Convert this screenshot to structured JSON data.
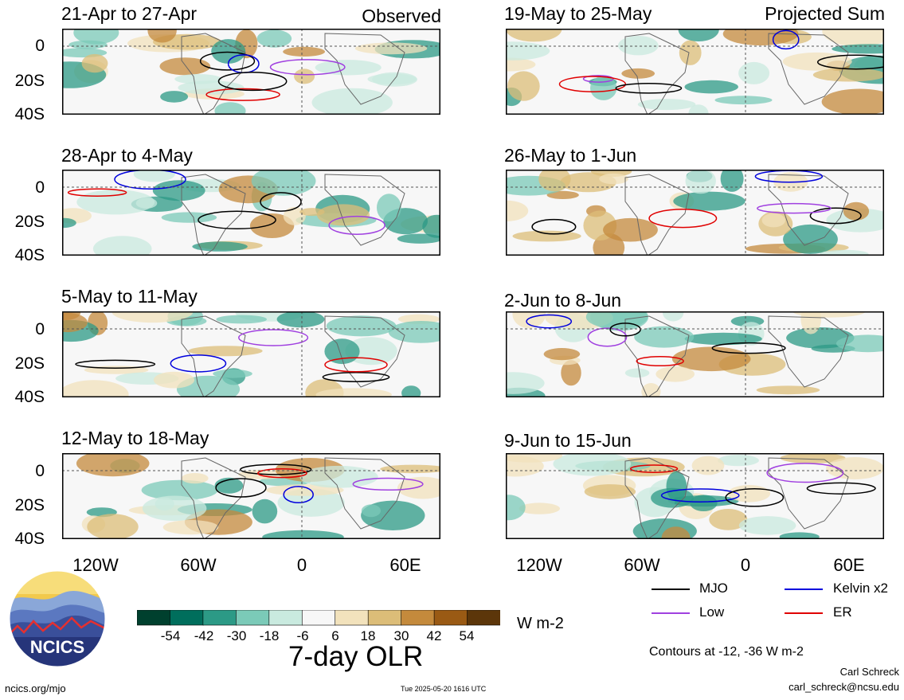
{
  "panels": [
    {
      "title": "21-Apr to 27-Apr",
      "tag": "Observed"
    },
    {
      "title": "28-Apr to 4-May",
      "tag": ""
    },
    {
      "title": "5-May to 11-May",
      "tag": ""
    },
    {
      "title": "12-May to 18-May",
      "tag": ""
    },
    {
      "title": "19-May to 25-May",
      "tag": "Projected Sum"
    },
    {
      "title": "26-May to 1-Jun",
      "tag": ""
    },
    {
      "title": "2-Jun to 8-Jun",
      "tag": ""
    },
    {
      "title": "9-Jun to 15-Jun",
      "tag": ""
    }
  ],
  "lat_labels": [
    "0",
    "20S",
    "40S"
  ],
  "lon_labels": [
    "120W",
    "60W",
    "0",
    "60E"
  ],
  "legend": [
    {
      "label": "MJO",
      "color": "#000000"
    },
    {
      "label": "Kelvin x2",
      "color": "#0000dd"
    },
    {
      "label": "Low",
      "color": "#a040e0"
    },
    {
      "label": "ER",
      "color": "#e00000"
    }
  ],
  "colorbar": {
    "ticks": [
      "-54",
      "-42",
      "-30",
      "-18",
      "-6",
      "6",
      "18",
      "30",
      "42",
      "54"
    ],
    "colors": [
      "#00402e",
      "#006e5c",
      "#2c9a86",
      "#7bcab8",
      "#c9eadf",
      "#f7f7f7",
      "#f2e2bc",
      "#dcbd78",
      "#c48a3c",
      "#9a5a14",
      "#5c360a"
    ],
    "units": "W m-2",
    "title": "7-day OLR"
  },
  "contours_note": "Contours at -12, -36 W m-2",
  "credit_name": "Carl Schreck",
  "credit_email": "carl_schreck@ncsu.edu",
  "site": "ncics.org/mjo",
  "timestamp": "Tue 2025-05-20 1616 UTC",
  "logo_text": "NCICS"
}
